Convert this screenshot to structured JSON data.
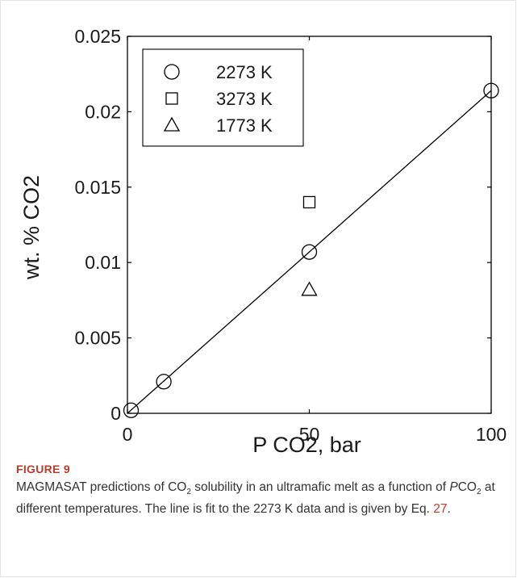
{
  "chart_data": {
    "type": "scatter",
    "xlabel": "P CO2, bar",
    "ylabel": "wt. % CO2",
    "xlim": [
      0,
      100
    ],
    "ylim": [
      0,
      0.025
    ],
    "xticks": [
      "0",
      "50",
      "100"
    ],
    "yticks": [
      "0",
      "0.005",
      "0.01",
      "0.015",
      "0.02",
      "0.025"
    ],
    "legend_position": "top-left",
    "series": [
      {
        "name": "2273 K",
        "marker": "circle",
        "x": [
          1,
          10,
          50,
          100
        ],
        "y": [
          0.0002,
          0.0021,
          0.0107,
          0.0214
        ]
      },
      {
        "name": "3273 K",
        "marker": "square",
        "x": [
          50
        ],
        "y": [
          0.014
        ]
      },
      {
        "name": "1773 K",
        "marker": "triangle",
        "x": [
          50
        ],
        "y": [
          0.0082
        ]
      }
    ],
    "fit_line": {
      "x": [
        0,
        100
      ],
      "y": [
        0,
        0.0214
      ]
    },
    "line_color": "#000000"
  },
  "caption": {
    "figure_label": "FIGURE 9",
    "text_1": "MAGMASAT predictions of CO",
    "sub_1": "2",
    "text_2": " solubility in an ultramafic melt as a function of ",
    "italic_p": "P",
    "text_3": "CO",
    "sub_2": "2",
    "text_4": " at different temperatures. The line is fit to the 2273 K data and is given by Eq. ",
    "eq_ref": "27",
    "text_5": "."
  },
  "colors": {
    "accent": "#c0392b",
    "caption_text": "#333333"
  }
}
